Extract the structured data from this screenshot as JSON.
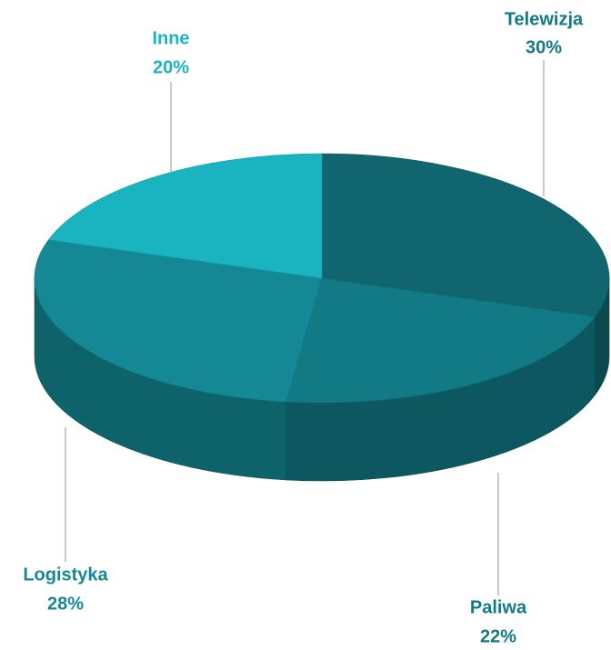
{
  "chart_data": {
    "type": "pie",
    "categories": [
      "Telewizja",
      "Paliwa",
      "Logistyka",
      "Inne"
    ],
    "values": [
      30,
      22,
      28,
      20
    ],
    "value_labels": [
      "30%",
      "22%",
      "28%",
      "20%"
    ],
    "colors": [
      "#10656e",
      "#127a85",
      "#148995",
      "#1ab3c0"
    ]
  }
}
